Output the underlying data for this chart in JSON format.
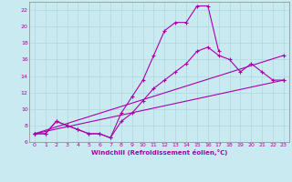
{
  "xlabel": "Windchill (Refroidissement éolien,°C)",
  "background_color": "#c8eaf0",
  "grid_color": "#b0d8e0",
  "line_color": "#aa00aa",
  "spine_color": "#888888",
  "xlim": [
    -0.5,
    23.5
  ],
  "ylim": [
    6,
    23
  ],
  "xticks": [
    0,
    1,
    2,
    3,
    4,
    5,
    6,
    7,
    8,
    9,
    10,
    11,
    12,
    13,
    14,
    15,
    16,
    17,
    18,
    19,
    20,
    21,
    22,
    23
  ],
  "yticks": [
    6,
    8,
    10,
    12,
    14,
    16,
    18,
    20,
    22
  ],
  "line1_x": [
    0,
    1,
    2,
    3,
    4,
    5,
    6,
    7,
    8,
    9,
    10,
    11,
    12,
    13,
    14,
    15,
    16,
    17
  ],
  "line1_y": [
    7,
    7,
    8.5,
    8,
    7.5,
    7,
    7,
    6.5,
    9.5,
    11.5,
    13.5,
    16.5,
    19.5,
    20.5,
    20.5,
    22.5,
    22.5,
    17.0
  ],
  "line2_x": [
    0,
    1,
    2,
    3,
    4,
    5,
    6,
    7,
    8,
    9,
    10,
    11,
    12,
    13,
    14,
    15,
    16,
    17,
    18,
    19,
    20,
    21,
    22,
    23
  ],
  "line2_y": [
    7,
    7,
    8.5,
    8,
    7.5,
    7,
    7,
    6.5,
    8.5,
    9.5,
    11.0,
    12.5,
    13.5,
    14.5,
    15.5,
    17.0,
    17.5,
    16.5,
    16.0,
    14.5,
    15.5,
    14.5,
    13.5,
    13.5
  ],
  "line3_x": [
    0,
    23
  ],
  "line3_y": [
    7.0,
    16.5
  ],
  "line4_x": [
    0,
    23
  ],
  "line4_y": [
    7.0,
    13.5
  ]
}
